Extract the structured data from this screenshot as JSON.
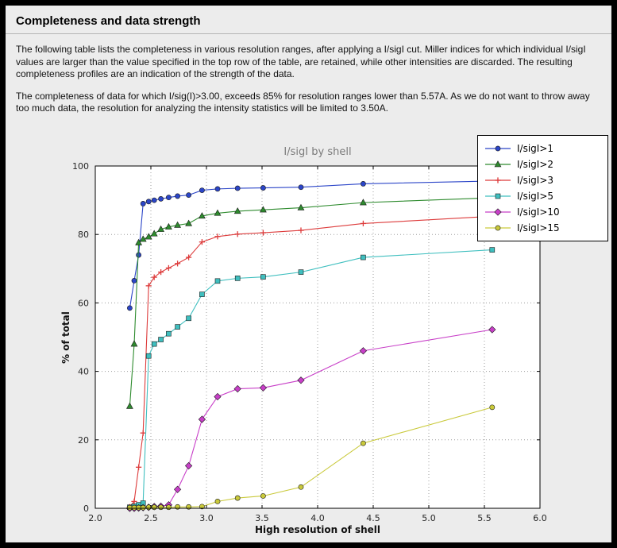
{
  "page": {
    "title": "Completeness and data strength",
    "paragraphs": [
      "The following table lists the completeness in various resolution ranges, after applying a I/sigI cut. Miller indices for which individual I/sigI values are larger than the value specified in the top row of the table, are retained, while other intensities are discarded. The resulting completeness profiles are an indication of the strength of the data.",
      "The completeness of data for which I/sig(I)>3.00, exceeds  85% for resolution ranges lower than 5.57A. As we do not want to throw away too much data, the resolution for analyzing the intensity statistics will be limited to 3.50A."
    ]
  },
  "chart_data": {
    "type": "line",
    "title": "I/sigI by shell",
    "xlabel": "High resolution of shell",
    "ylabel": "% of total",
    "xlim": [
      2.0,
      6.0
    ],
    "ylim": [
      0,
      100
    ],
    "xticks": [
      2.0,
      2.5,
      3.0,
      3.5,
      4.0,
      4.5,
      5.0,
      5.5,
      6.0
    ],
    "xtick_labels": [
      "2.0",
      "2.5",
      "3.0",
      "3.5",
      "4.0",
      "4.5",
      "5.0",
      "5.5",
      "6.0"
    ],
    "yticks": [
      0,
      20,
      40,
      60,
      80,
      100
    ],
    "ytick_labels": [
      "0",
      "20",
      "40",
      "60",
      "80",
      "100"
    ],
    "grid": true,
    "legend_position": "top-right",
    "x": [
      2.31,
      2.35,
      2.39,
      2.43,
      2.48,
      2.53,
      2.59,
      2.66,
      2.74,
      2.84,
      2.96,
      3.1,
      3.28,
      3.51,
      3.85,
      4.41,
      5.57
    ],
    "series": [
      {
        "name": "I/sigI>1",
        "color": "#2b45c8",
        "marker": "circle",
        "y": [
          58.5,
          66.5,
          74.0,
          89.0,
          89.6,
          90.0,
          90.4,
          90.8,
          91.2,
          91.5,
          92.9,
          93.3,
          93.5,
          93.6,
          93.8,
          94.8,
          95.6
        ]
      },
      {
        "name": "I/sigI>2",
        "color": "#2e8b2e",
        "marker": "triangle",
        "y": [
          29.8,
          48.0,
          77.6,
          78.6,
          79.3,
          80.2,
          81.5,
          82.2,
          82.7,
          83.2,
          85.4,
          86.2,
          86.8,
          87.2,
          87.8,
          89.3,
          90.7
        ]
      },
      {
        "name": "I/sigI>3",
        "color": "#dd3b3b",
        "marker": "plus",
        "y": [
          0.4,
          2.0,
          12.0,
          22.0,
          65.0,
          67.5,
          69.0,
          70.2,
          71.5,
          73.3,
          77.8,
          79.4,
          80.1,
          80.5,
          81.2,
          83.2,
          85.3
        ]
      },
      {
        "name": "I/sigI>5",
        "color": "#3fbfbf",
        "marker": "square",
        "y": [
          0.3,
          0.6,
          1.0,
          1.5,
          44.5,
          48.0,
          49.3,
          51.0,
          53.0,
          55.5,
          62.5,
          66.4,
          67.2,
          67.6,
          69.0,
          73.3,
          75.5
        ]
      },
      {
        "name": "I/sigI>10",
        "color": "#c83fc8",
        "marker": "diamond",
        "y": [
          0.0,
          0.0,
          0.1,
          0.2,
          0.3,
          0.5,
          0.6,
          1.0,
          5.5,
          12.4,
          26.0,
          32.6,
          34.9,
          35.2,
          37.4,
          46.0,
          52.2
        ]
      },
      {
        "name": "I/sigI>15",
        "color": "#c9c93a",
        "marker": "circle",
        "y": [
          0.2,
          0.2,
          0.2,
          0.2,
          0.3,
          0.3,
          0.3,
          0.3,
          0.4,
          0.4,
          0.5,
          2.0,
          3.0,
          3.6,
          6.2,
          19.0,
          29.5
        ]
      }
    ]
  }
}
